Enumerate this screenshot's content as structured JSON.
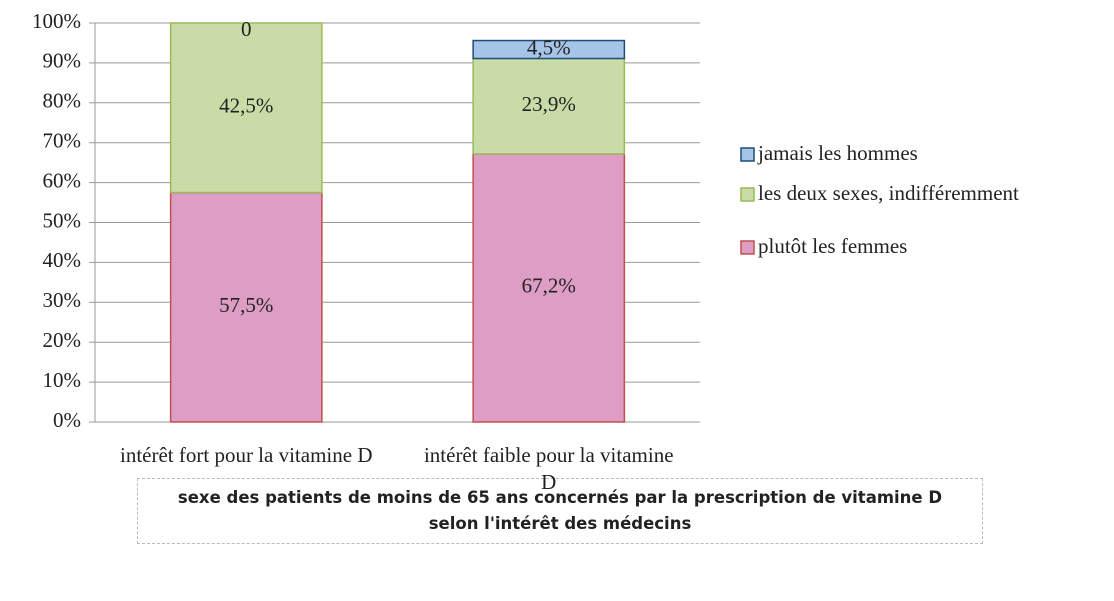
{
  "chart_data": {
    "type": "stacked_bar",
    "title": "sexe des patients de moins de 65 ans concernés par la prescription de vitamine D selon l'intérêt des médecins",
    "categories": [
      "intérêt fort pour la vitamine D",
      "intérêt faible pour la vitamine D"
    ],
    "series": [
      {
        "name": "plutôt les femmes",
        "color": "#dd9dc5",
        "border": "#c0504d",
        "values": [
          57.5,
          67.2
        ],
        "value_labels": [
          "57,5%",
          "67,2%"
        ]
      },
      {
        "name": "les deux sexes, indifféremment",
        "color": "#c9dba6",
        "border": "#9bbb59",
        "values": [
          42.5,
          23.9
        ],
        "value_labels": [
          "42,5%",
          "23,9%"
        ]
      },
      {
        "name": "jamais les hommes",
        "color": "#a6c4e8",
        "border": "#1f4e79",
        "values": [
          0,
          4.5
        ],
        "value_labels": [
          "0",
          "4,5%"
        ]
      }
    ],
    "ylim": [
      0,
      100
    ],
    "yticks": [
      {
        "value": 0,
        "label": "0%"
      },
      {
        "value": 10,
        "label": "10%"
      },
      {
        "value": 20,
        "label": "20%"
      },
      {
        "value": 30,
        "label": "30%"
      },
      {
        "value": 40,
        "label": "40%"
      },
      {
        "value": 50,
        "label": "50%"
      },
      {
        "value": 60,
        "label": "60%"
      },
      {
        "value": 70,
        "label": "70%"
      },
      {
        "value": 80,
        "label": "80%"
      },
      {
        "value": 90,
        "label": "90%"
      },
      {
        "value": 100,
        "label": "100%"
      }
    ],
    "grid": true,
    "legend": "right"
  }
}
